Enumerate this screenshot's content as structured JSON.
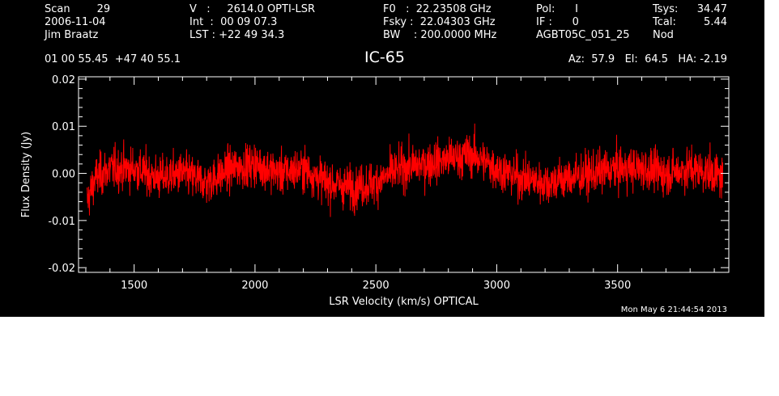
{
  "header": {
    "col1": [
      "Scan        29",
      "2006-11-04",
      "Jim Braatz"
    ],
    "col2": [
      "V   :     2614.0 OPTI-LSR",
      "Int  :  00 09 07.3",
      "LST : +22 49 34.3"
    ],
    "col3": [
      "F0   :  22.23508 GHz",
      "Fsky :  22.04303 GHz",
      "BW    : 200.0000 MHz"
    ],
    "col4": [
      "Pol:      I",
      "IF :      0",
      "AGBT05C_051_25"
    ],
    "col5": [
      "Tsys:",
      "Tcal:",
      "Nod"
    ],
    "col6": [
      "34.47",
      "5.44"
    ],
    "coords": "01 00 55.45  +47 40 55.1",
    "source": "IC-65",
    "azelha": "Az:  57.9   El:  64.5   HA: -2.19"
  },
  "chart_data": {
    "type": "line",
    "xlabel": "LSR Velocity (km/s) OPTICAL",
    "ylabel": "Flux Density (Jy)",
    "xlim": [
      1270,
      3960
    ],
    "ylim": [
      -0.021,
      0.0205
    ],
    "x_ticks": [
      1500,
      2000,
      2500,
      3000,
      3500
    ],
    "x_tick_labels": [
      "1500",
      "2000",
      "2500",
      "3000",
      "3500"
    ],
    "y_ticks": [
      -0.02,
      -0.01,
      0.0,
      0.01,
      0.02
    ],
    "y_tick_labels": [
      "-0.02",
      "-0.01",
      "0.00",
      "0.01",
      "0.02"
    ],
    "grid": false,
    "series": [
      {
        "x_range": [
          1305,
          3935
        ],
        "baseline": {
          "x": [
            1305,
            1340,
            1400,
            1500,
            1600,
            1700,
            1800,
            1900,
            2000,
            2100,
            2200,
            2300,
            2400,
            2500,
            2600,
            2700,
            2800,
            2900,
            3000,
            3100,
            3200,
            3300,
            3400,
            3500,
            3600,
            3700,
            3800,
            3900,
            3935
          ],
          "y": [
            -0.006,
            -0.001,
            0.001,
            0.001,
            -0.001,
            0.0,
            -0.002,
            0.001,
            0.002,
            0.0,
            0.001,
            -0.002,
            -0.003,
            -0.002,
            0.001,
            0.002,
            0.003,
            0.004,
            0.001,
            -0.001,
            -0.002,
            -0.001,
            0.0,
            0.001,
            0.001,
            0.0,
            0.001,
            0.0,
            -0.001
          ]
        },
        "noise_sigma_jy": 0.0045,
        "color": "#ff0000"
      }
    ]
  },
  "footer": {
    "timestamp": "Mon May  6 21:44:54 2013"
  }
}
